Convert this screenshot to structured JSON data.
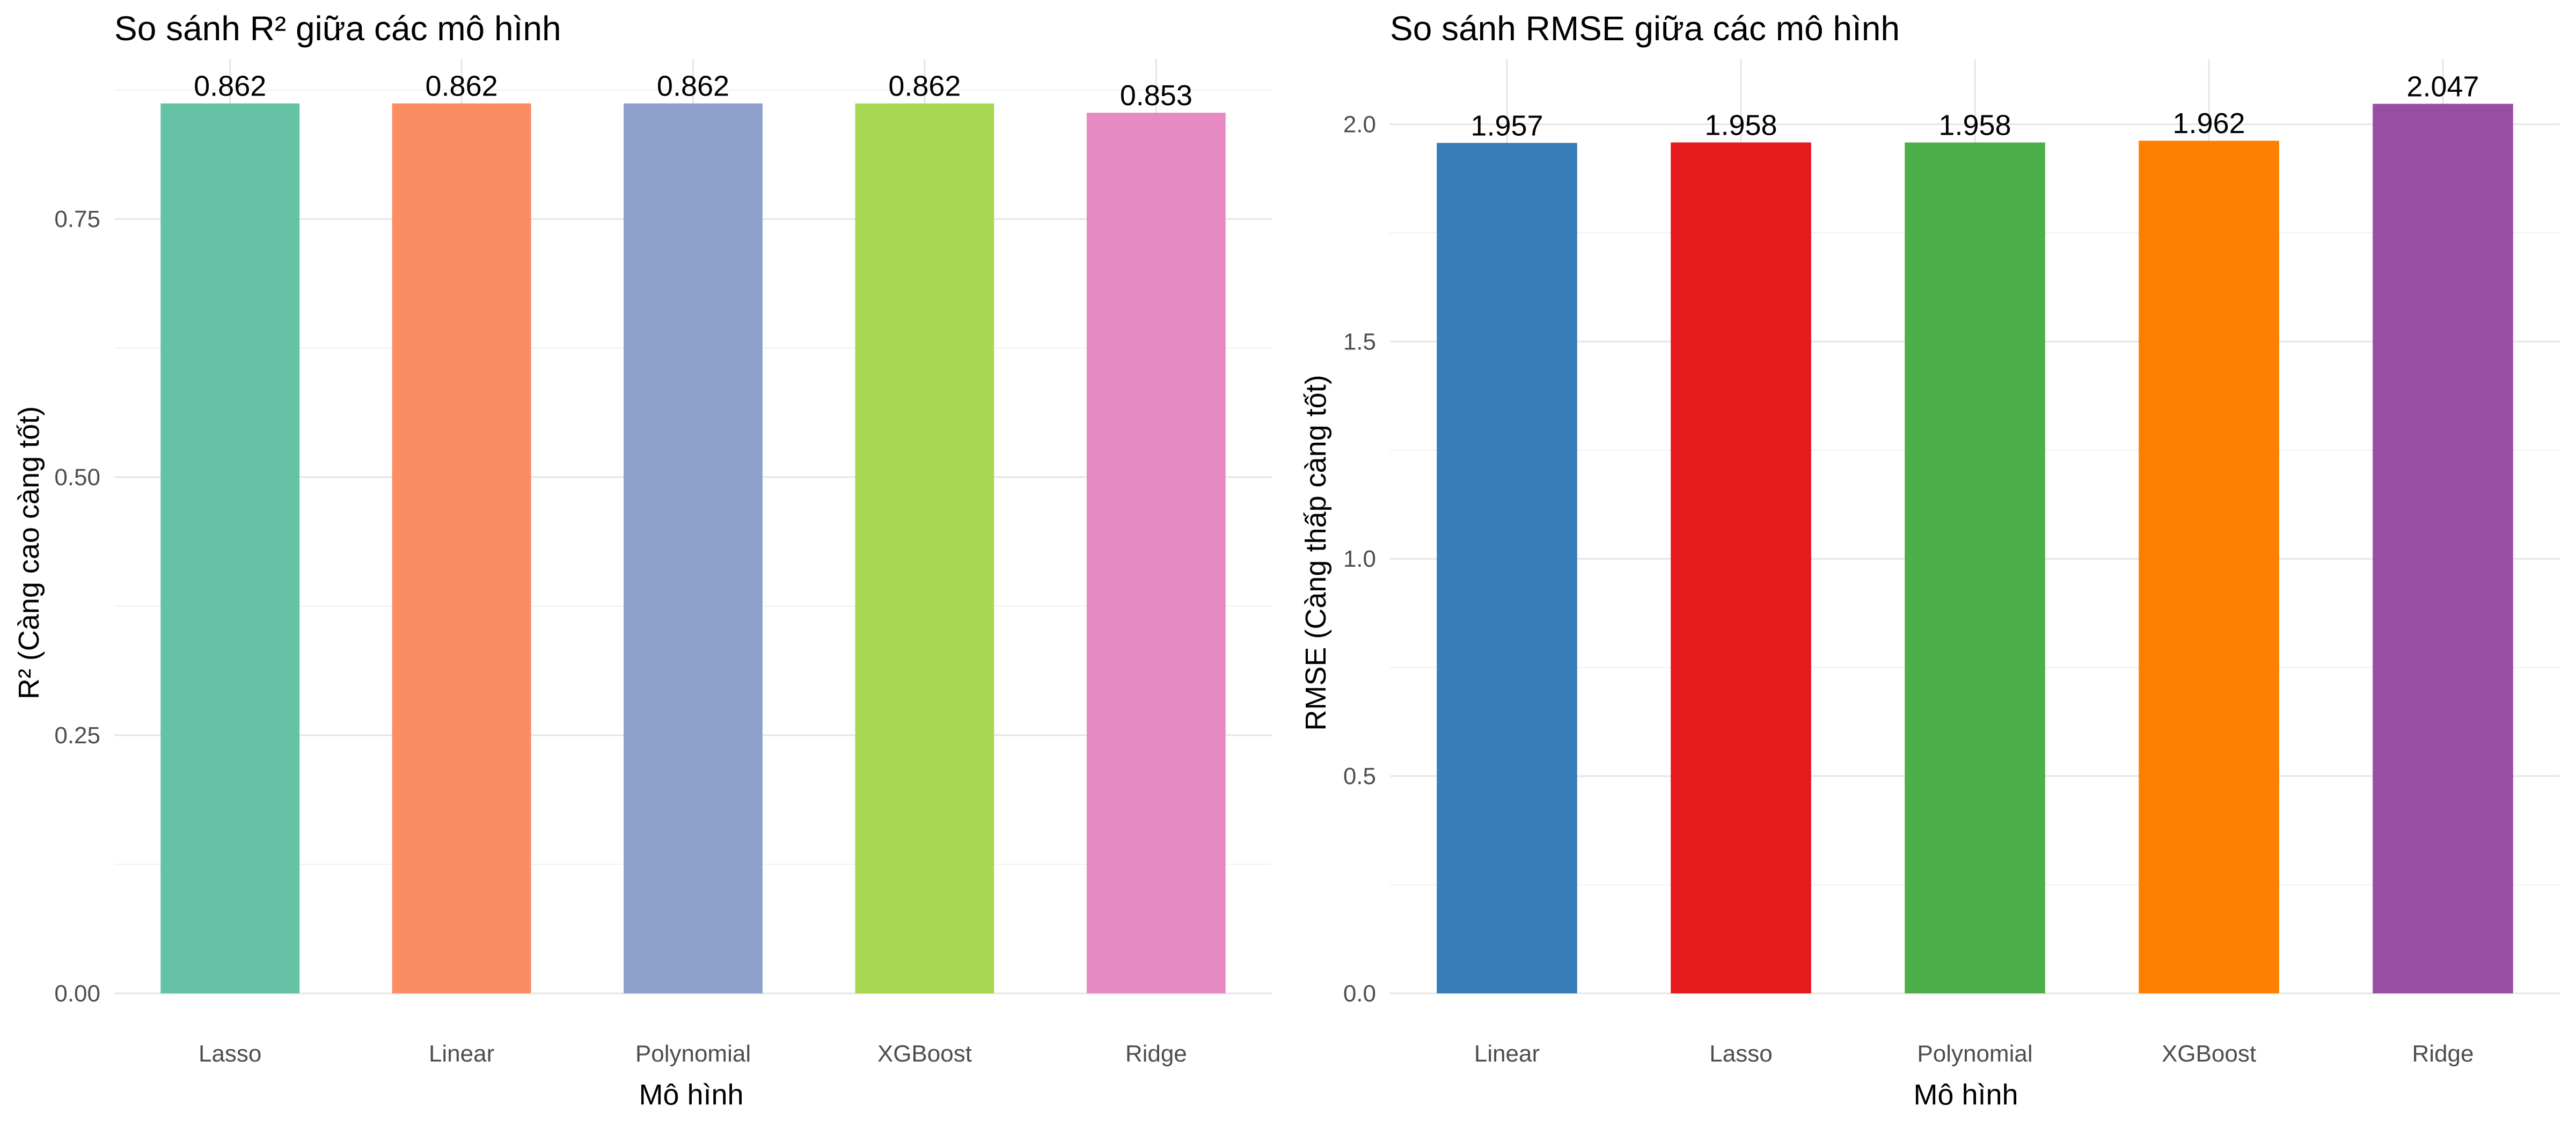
{
  "chart_data": [
    {
      "type": "bar",
      "title": "So sánh R² giữa các mô hình",
      "xlabel": "Mô hình",
      "ylabel": "R² (Càng cao càng tốt)",
      "categories": [
        "Lasso",
        "Linear",
        "Polynomial",
        "XGBoost",
        "Ridge"
      ],
      "values": [
        0.862,
        0.862,
        0.862,
        0.862,
        0.853
      ],
      "value_labels": [
        "0.862",
        "0.862",
        "0.862",
        "0.862",
        "0.853"
      ],
      "colors": [
        "#66C2A5",
        "#FC8D62",
        "#8DA0CB",
        "#A6D854",
        "#E78AC3"
      ],
      "ylim": [
        0,
        0.905
      ],
      "yticks": [
        0,
        0.25,
        0.5,
        0.75
      ],
      "ytick_labels": [
        "0.00",
        "0.25",
        "0.50",
        "0.75"
      ],
      "grid": true,
      "legend": "none"
    },
    {
      "type": "bar",
      "title": "So sánh RMSE giữa các mô hình",
      "xlabel": "Mô hình",
      "ylabel": "RMSE (Càng thấp càng tốt)",
      "categories": [
        "Linear",
        "Lasso",
        "Polynomial",
        "XGBoost",
        "Ridge"
      ],
      "values": [
        1.957,
        1.958,
        1.958,
        1.962,
        2.047
      ],
      "value_labels": [
        "1.957",
        "1.958",
        "1.958",
        "1.962",
        "2.047"
      ],
      "colors": [
        "#377EB8",
        "#E41A1C",
        "#4DAF4A",
        "#FF7F00",
        "#984EA3"
      ],
      "ylim": [
        0,
        2.15
      ],
      "yticks": [
        0,
        0.5,
        1,
        1.5,
        2
      ],
      "ytick_labels": [
        "0.0",
        "0.5",
        "1.0",
        "1.5",
        "2.0"
      ],
      "grid": true,
      "legend": "none"
    }
  ]
}
